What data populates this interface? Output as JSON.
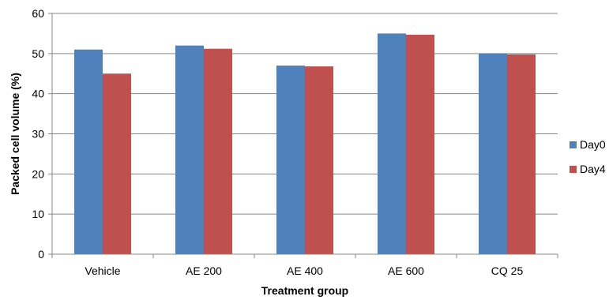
{
  "chart_data": {
    "type": "bar",
    "title": "",
    "xlabel": "Treatment group",
    "ylabel": "Packed cell volume (%)",
    "categories": [
      "Vehicle",
      "AE 200",
      "AE 400",
      "AE 600",
      "CQ 25"
    ],
    "series": [
      {
        "name": "Day0",
        "color": "#4F81BD",
        "values": [
          51,
          52,
          47,
          55,
          50
        ]
      },
      {
        "name": "Day4",
        "color": "#C0504D",
        "values": [
          45,
          51.2,
          46.8,
          54.7,
          49.8
        ]
      }
    ],
    "ylim": [
      0,
      60
    ],
    "yticks": [
      0,
      10,
      20,
      30,
      40,
      50,
      60
    ],
    "grid": true,
    "legend": "right"
  }
}
